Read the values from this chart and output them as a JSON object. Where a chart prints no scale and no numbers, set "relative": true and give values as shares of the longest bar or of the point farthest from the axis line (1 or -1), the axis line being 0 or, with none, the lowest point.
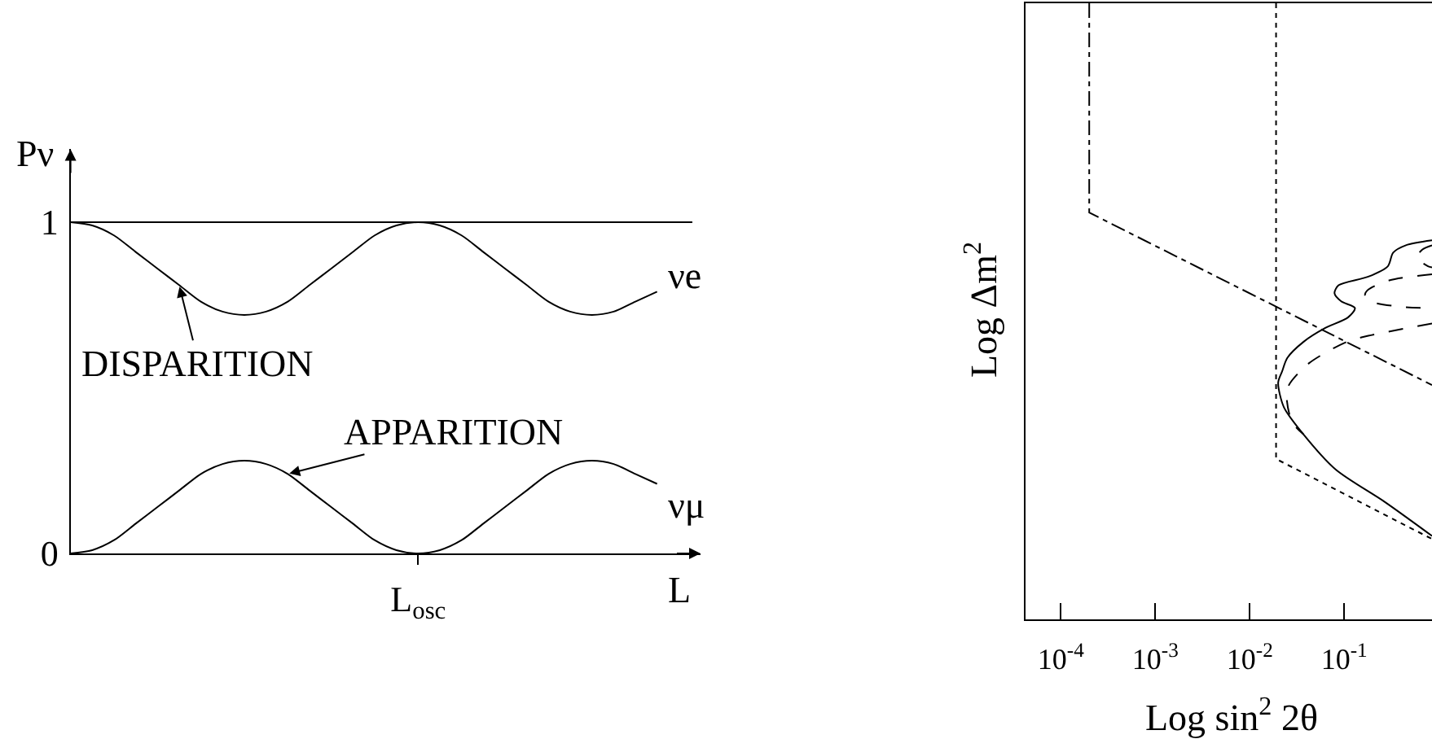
{
  "chart_data": [
    {
      "type": "line",
      "ylabel": "Pν",
      "xlabel": "L",
      "categories": [
        null,
        null,
        null,
        null,
        null,
        null,
        null,
        null,
        null,
        null,
        null,
        null,
        null,
        null,
        null,
        null,
        "L$_{osc}$",
        null,
        null,
        null,
        null,
        null,
        null,
        null,
        null,
        null,
        null,
        null
      ],
      "series": [
        {
          "name": "νe",
          "color": "#000000",
          "values": [
            1,
            0.99,
            0.96,
            0.91,
            0.86,
            0.81,
            0.76,
            0.73,
            0.72,
            0.73,
            0.76,
            0.81,
            0.86,
            0.91,
            0.96,
            0.99,
            1,
            0.99,
            0.96,
            0.91,
            0.86,
            0.81,
            0.76,
            0.73,
            0.72,
            0.73,
            0.76,
            0.79
          ]
        },
        {
          "name": "νμ",
          "color": "#000000",
          "values": [
            0,
            0.01,
            0.04,
            0.09,
            0.14,
            0.19,
            0.24,
            0.27,
            0.28,
            0.27,
            0.24,
            0.19,
            0.14,
            0.09,
            0.04,
            0.01,
            0,
            0.01,
            0.04,
            0.09,
            0.14,
            0.19,
            0.24,
            0.27,
            0.28,
            0.27,
            0.24,
            0.21
          ]
        }
      ],
      "ylim": [
        0,
        1.22
      ],
      "yticks": [
        0,
        1
      ],
      "ref_lines": [
        {
          "axis": "y",
          "value": 1,
          "color": "#000000"
        }
      ],
      "annotations": [
        "DISPARITION",
        "APPARITION"
      ],
      "grid": false,
      "legend": false,
      "marker": "none",
      "line_style": "solid"
    },
    {
      "type": "line",
      "xlabel": "Log sin$^{2}$ 2θ",
      "ylabel": "Log Δm$^{2}$",
      "relative": true,
      "log": "x",
      "xlim": [
        4.2e-05,
        0.85
      ],
      "xticks": [
        {
          "value": 0.0001,
          "label": "10$^{-4}$"
        },
        {
          "value": 0.001,
          "label": "10$^{-3}$"
        },
        {
          "value": 0.01,
          "label": "10$^{-2}$"
        },
        {
          "value": 0.1,
          "label": "10$^{-1}$"
        }
      ],
      "series": [
        {
          "color": "#000000",
          "line_style": "dashdot",
          "x": [
            0.0002,
            0.0002,
            0.85
          ],
          "values": [
            1,
            0.66,
            0.38
          ]
        },
        {
          "color": "#000000",
          "line_style": "dotted",
          "x": [
            0.019,
            0.019,
            0.85
          ],
          "values": [
            1,
            0.26,
            0.13
          ]
        },
        {
          "color": "#000000",
          "line_style": "dashed",
          "x": [
            0.85,
            0.18,
            0.106,
            0.042,
            0.026,
            0.0246,
            0.028,
            0.037
          ],
          "values": [
            0.48,
            0.46,
            0.45,
            0.415,
            0.38,
            0.36,
            0.32,
            0.3
          ]
        },
        {
          "color": "#000000",
          "line_style": "dashed",
          "x": [
            0.85,
            0.3,
            0.18,
            0.166,
            0.19,
            0.4,
            0.85
          ],
          "values": [
            0.56,
            0.55,
            0.535,
            0.526,
            0.516,
            0.507,
            0.505
          ]
        },
        {
          "color": "#000000",
          "line_style": "dashed",
          "x": [
            0.85,
            0.67,
            0.59,
            0.77,
            0.85
          ],
          "values": [
            0.607,
            0.6,
            0.587,
            0.573,
            0.571
          ]
        },
        {
          "color": "#000000",
          "line_style": "solid",
          "x": [
            0.85,
            0.45,
            0.33,
            0.29,
            0.18,
            0.087,
            0.079,
            0.093,
            0.13,
            0.11,
            0.062,
            0.037,
            0.025,
            0.022,
            0.02,
            0.023,
            0.037,
            0.081,
            0.27,
            0.85
          ],
          "values": [
            0.615,
            0.607,
            0.595,
            0.573,
            0.556,
            0.542,
            0.529,
            0.516,
            0.505,
            0.49,
            0.472,
            0.45,
            0.424,
            0.402,
            0.384,
            0.344,
            0.3,
            0.243,
            0.19,
            0.135
          ]
        }
      ],
      "grid": false,
      "legend": false,
      "marker": "none"
    }
  ]
}
